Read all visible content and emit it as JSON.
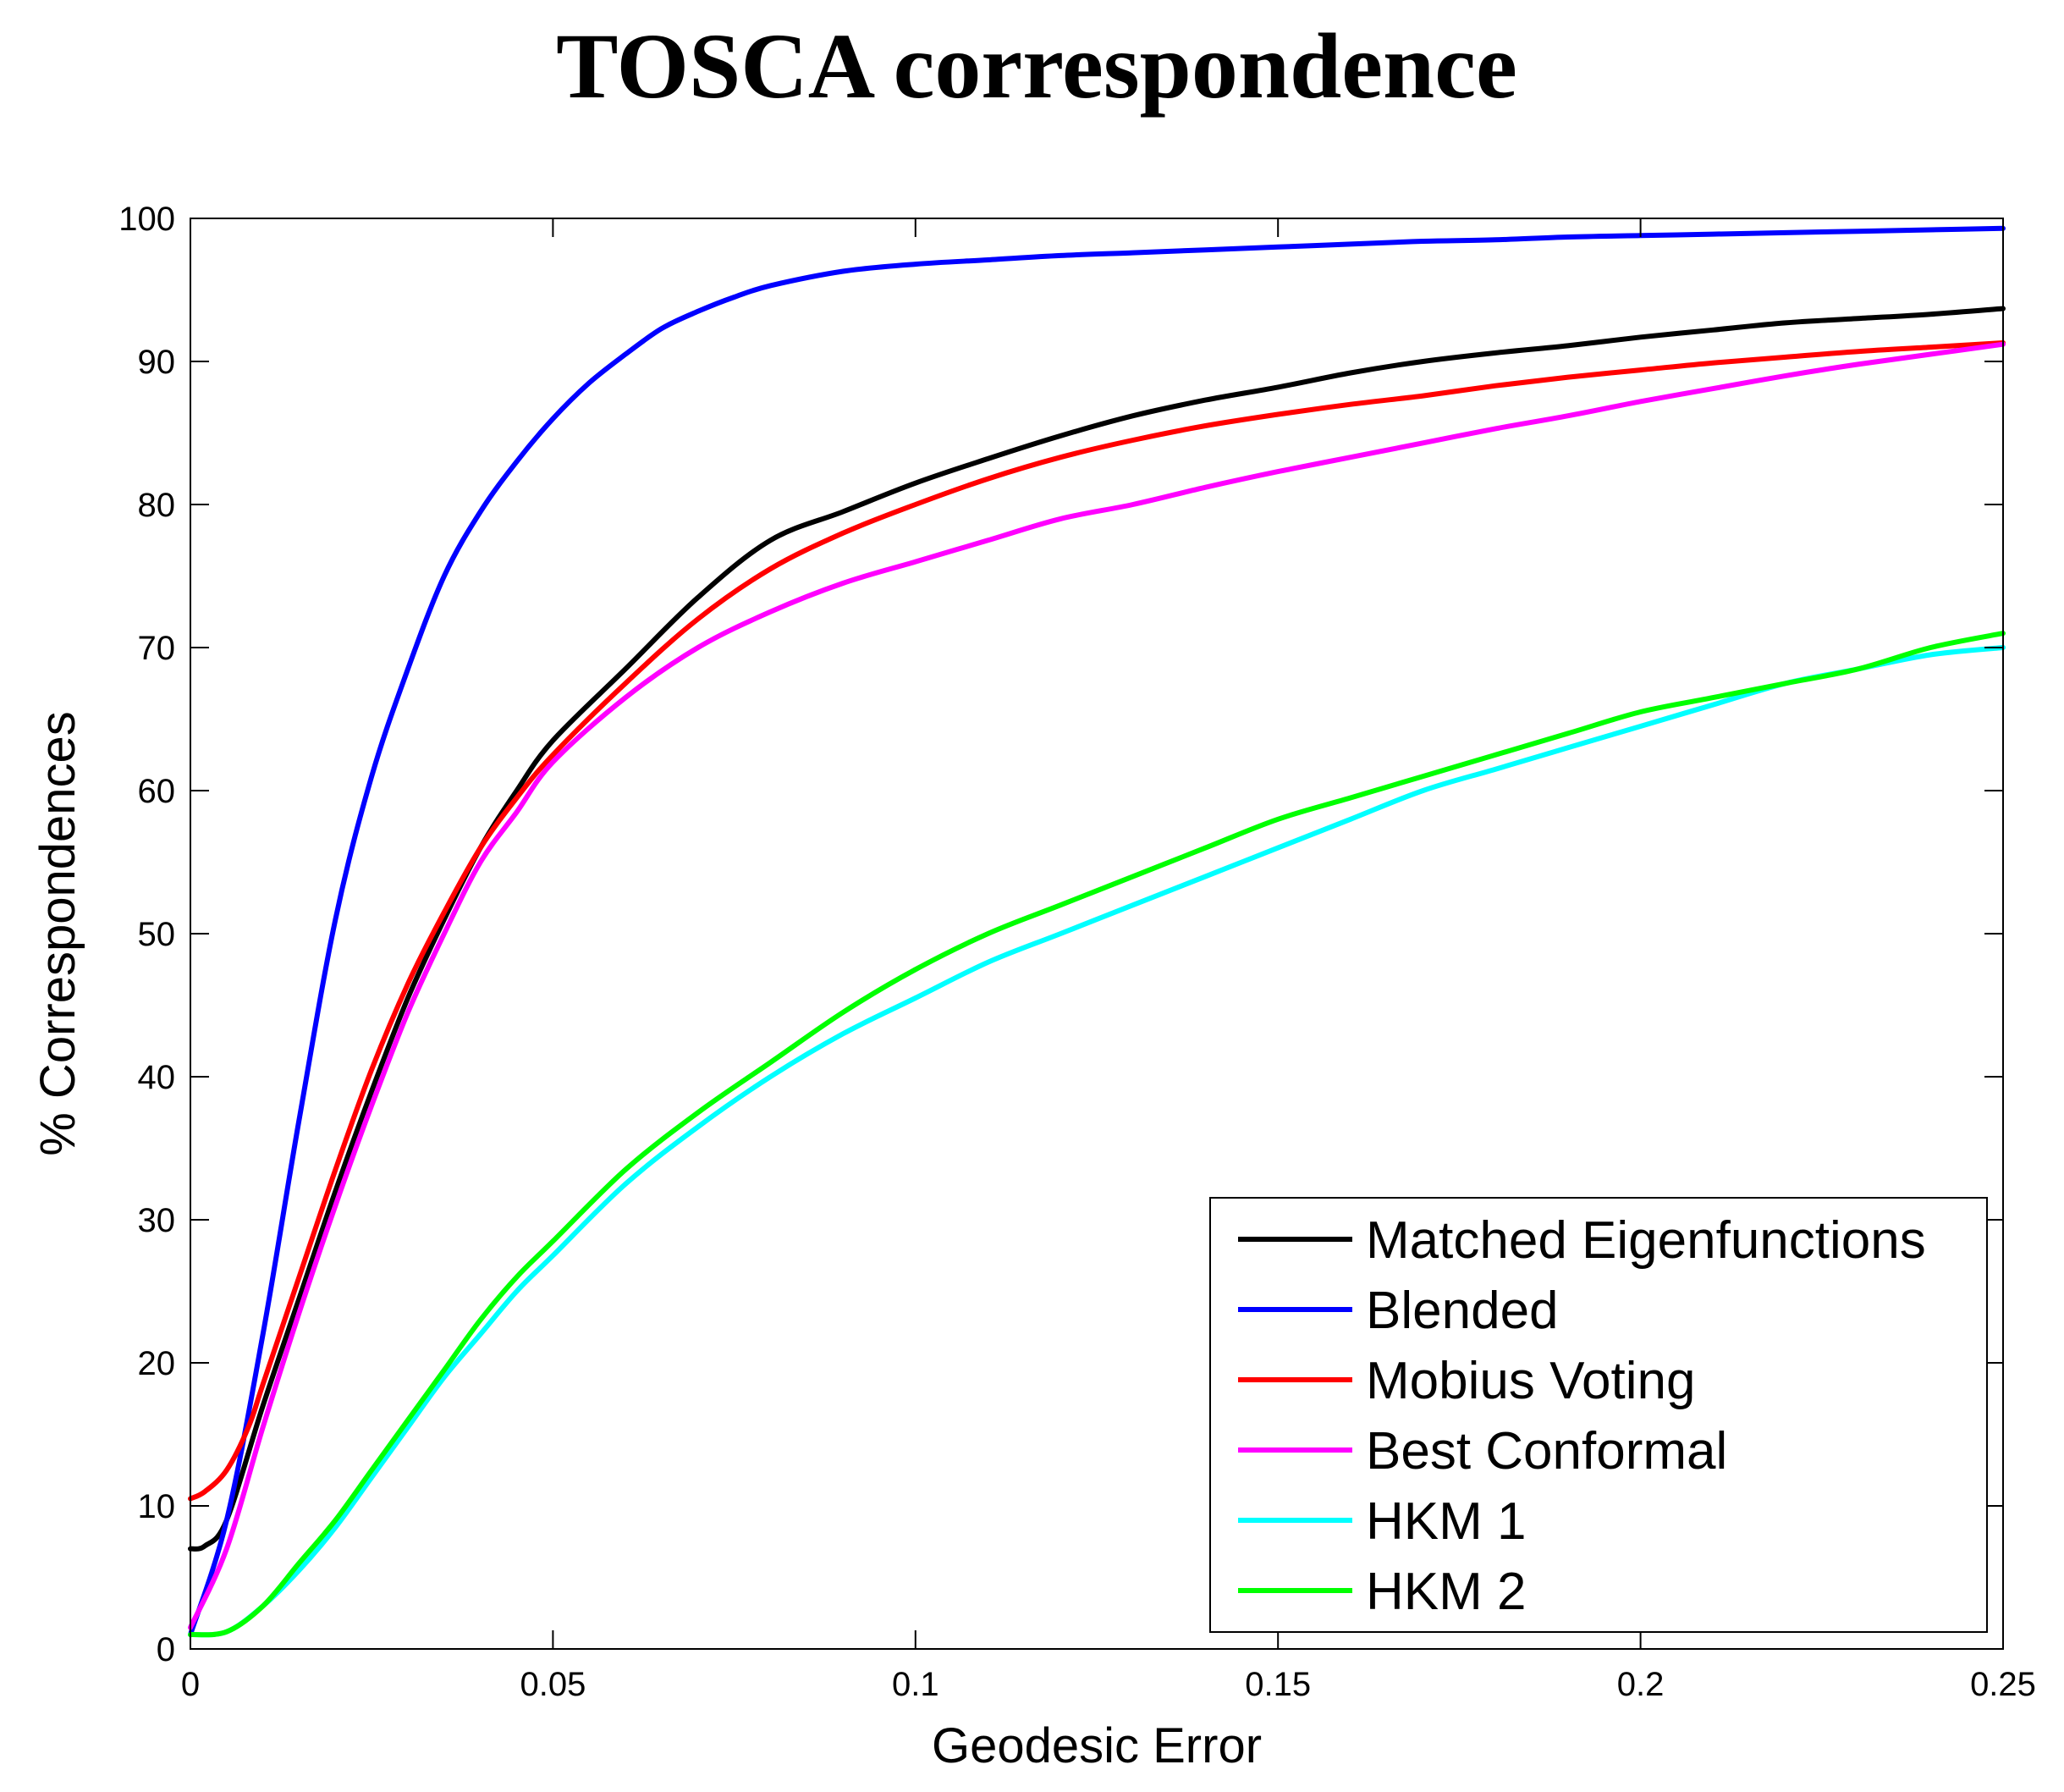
{
  "chart_data": {
    "type": "line",
    "title": "TOSCA correspondence",
    "xlabel": "Geodesic Error",
    "ylabel": "% Correspondences",
    "xlim": [
      0,
      0.25
    ],
    "ylim": [
      0,
      100
    ],
    "x_ticks": [
      0,
      0.05,
      0.1,
      0.15,
      0.2,
      0.25
    ],
    "x_tick_labels": [
      "0",
      "0.05",
      "0.1",
      "0.15",
      "0.2",
      "0.25"
    ],
    "y_ticks": [
      0,
      10,
      20,
      30,
      40,
      50,
      60,
      70,
      80,
      90,
      100
    ],
    "y_tick_labels": [
      "0",
      "10",
      "20",
      "30",
      "40",
      "50",
      "60",
      "70",
      "80",
      "90",
      "100"
    ],
    "grid": false,
    "legend_position": "bottom-right",
    "series": [
      {
        "name": "Matched Eigenfunctions",
        "color": "#000000",
        "x": [
          0,
          0.002,
          0.005,
          0.01,
          0.015,
          0.02,
          0.025,
          0.03,
          0.035,
          0.04,
          0.045,
          0.05,
          0.06,
          0.07,
          0.08,
          0.09,
          0.1,
          0.11,
          0.12,
          0.13,
          0.14,
          0.15,
          0.16,
          0.17,
          0.18,
          0.19,
          0.2,
          0.21,
          0.22,
          0.23,
          0.24,
          0.25
        ],
        "y": [
          7,
          7.2,
          9,
          17,
          24.5,
          32,
          39,
          45.5,
          51,
          56,
          60,
          63.5,
          68.5,
          73.5,
          77.5,
          79.5,
          81.5,
          83.2,
          84.8,
          86.2,
          87.3,
          88.2,
          89.2,
          90,
          90.6,
          91.1,
          91.7,
          92.2,
          92.7,
          93,
          93.3,
          93.7
        ]
      },
      {
        "name": "Blended",
        "color": "#0000ff",
        "x": [
          0,
          0.005,
          0.01,
          0.015,
          0.02,
          0.025,
          0.03,
          0.035,
          0.04,
          0.045,
          0.05,
          0.055,
          0.06,
          0.065,
          0.07,
          0.075,
          0.08,
          0.09,
          0.1,
          0.11,
          0.12,
          0.13,
          0.14,
          0.15,
          0.16,
          0.17,
          0.18,
          0.19,
          0.2,
          0.21,
          0.22,
          0.23,
          0.24,
          0.25
        ],
        "y": [
          1,
          9,
          22,
          37,
          51,
          61,
          68.5,
          75,
          79.5,
          83,
          86,
          88.5,
          90.5,
          92.3,
          93.5,
          94.5,
          95.3,
          96.3,
          96.8,
          97.1,
          97.4,
          97.6,
          97.8,
          98,
          98.2,
          98.4,
          98.5,
          98.7,
          98.8,
          98.9,
          99,
          99.1,
          99.2,
          99.3
        ]
      },
      {
        "name": "Mobius Voting",
        "color": "#ff0000",
        "x": [
          0,
          0.002,
          0.005,
          0.008,
          0.01,
          0.015,
          0.02,
          0.025,
          0.03,
          0.035,
          0.04,
          0.045,
          0.05,
          0.06,
          0.07,
          0.08,
          0.09,
          0.1,
          0.11,
          0.12,
          0.13,
          0.14,
          0.15,
          0.16,
          0.17,
          0.18,
          0.19,
          0.2,
          0.21,
          0.22,
          0.23,
          0.24,
          0.25
        ],
        "y": [
          10.5,
          11,
          12.5,
          15.5,
          18.5,
          26,
          33.5,
          40.5,
          46.5,
          51.5,
          56,
          59.5,
          62.5,
          67.5,
          72,
          75.5,
          78,
          80,
          81.8,
          83.3,
          84.5,
          85.5,
          86.3,
          87,
          87.6,
          88.3,
          88.9,
          89.4,
          89.9,
          90.3,
          90.7,
          91,
          91.3
        ]
      },
      {
        "name": "Best Conformal",
        "color": "#ff00ff",
        "x": [
          0,
          0.005,
          0.01,
          0.015,
          0.02,
          0.025,
          0.03,
          0.035,
          0.04,
          0.045,
          0.05,
          0.06,
          0.07,
          0.08,
          0.09,
          0.1,
          0.11,
          0.12,
          0.13,
          0.14,
          0.15,
          0.16,
          0.17,
          0.18,
          0.19,
          0.2,
          0.21,
          0.22,
          0.23,
          0.24,
          0.25
        ],
        "y": [
          1.5,
          7,
          15.5,
          23.5,
          31,
          38,
          44.5,
          50,
          55,
          58.5,
          62,
          66.5,
          70,
          72.5,
          74.5,
          76,
          77.5,
          79,
          80,
          81.2,
          82.3,
          83.3,
          84.3,
          85.3,
          86.2,
          87.2,
          88.1,
          89,
          89.8,
          90.5,
          91.2
        ]
      },
      {
        "name": "HKM 1",
        "color": "#00ffff",
        "x": [
          0,
          0.005,
          0.01,
          0.015,
          0.02,
          0.025,
          0.03,
          0.035,
          0.04,
          0.045,
          0.05,
          0.06,
          0.07,
          0.08,
          0.09,
          0.1,
          0.11,
          0.12,
          0.13,
          0.14,
          0.15,
          0.16,
          0.17,
          0.18,
          0.19,
          0.2,
          0.21,
          0.22,
          0.23,
          0.24,
          0.25
        ],
        "y": [
          1,
          1.2,
          3,
          5.5,
          8.5,
          12,
          15.5,
          19,
          22,
          25,
          27.5,
          32.5,
          36.5,
          40,
          43,
          45.5,
          48,
          50,
          52,
          54,
          56,
          58,
          60,
          61.5,
          63,
          64.5,
          66,
          67.5,
          68.5,
          69.5,
          70
        ]
      },
      {
        "name": "HKM 2",
        "color": "#00ff00",
        "x": [
          0,
          0.005,
          0.01,
          0.015,
          0.02,
          0.025,
          0.03,
          0.035,
          0.04,
          0.045,
          0.05,
          0.06,
          0.07,
          0.08,
          0.09,
          0.1,
          0.11,
          0.12,
          0.13,
          0.14,
          0.15,
          0.16,
          0.17,
          0.18,
          0.19,
          0.2,
          0.21,
          0.22,
          0.23,
          0.24,
          0.25
        ],
        "y": [
          1,
          1.2,
          3,
          6,
          9,
          12.5,
          16,
          19.5,
          23,
          26,
          28.5,
          33.5,
          37.5,
          41,
          44.5,
          47.5,
          50,
          52,
          54,
          56,
          58,
          59.5,
          61,
          62.5,
          64,
          65.5,
          66.5,
          67.5,
          68.5,
          70,
          71
        ]
      }
    ]
  }
}
